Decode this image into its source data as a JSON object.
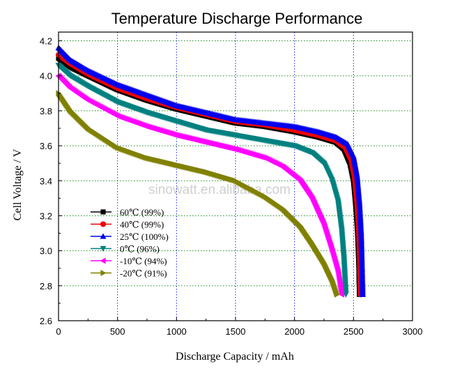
{
  "chart_data": {
    "type": "line",
    "title": "Temperature Discharge Performance",
    "xlabel": "Discharge Capacity / mAh",
    "ylabel": "Cell Voltage / V",
    "xlim": [
      0,
      3000
    ],
    "ylim": [
      2.6,
      4.25
    ],
    "xticks": [
      0,
      500,
      1000,
      1500,
      2000,
      2500,
      3000
    ],
    "yticks": [
      2.6,
      2.8,
      3.0,
      3.2,
      3.4,
      3.6,
      3.8,
      4.0,
      4.2
    ],
    "grid": true,
    "watermark": "sinowatt.en.alibaba.com",
    "legend_position": "lower-left",
    "series": [
      {
        "name": "60℃ (99%)",
        "color": "#000000",
        "marker": "square",
        "points": [
          [
            0,
            4.1
          ],
          [
            100,
            4.05
          ],
          [
            250,
            4.0
          ],
          [
            500,
            3.92
          ],
          [
            750,
            3.86
          ],
          [
            1000,
            3.81
          ],
          [
            1250,
            3.77
          ],
          [
            1500,
            3.73
          ],
          [
            1750,
            3.71
          ],
          [
            2000,
            3.68
          ],
          [
            2200,
            3.65
          ],
          [
            2350,
            3.62
          ],
          [
            2420,
            3.58
          ],
          [
            2470,
            3.5
          ],
          [
            2500,
            3.4
          ],
          [
            2520,
            3.25
          ],
          [
            2535,
            3.1
          ],
          [
            2545,
            2.92
          ],
          [
            2550,
            2.75
          ]
        ]
      },
      {
        "name": "40℃ (99%)",
        "color": "#ee0000",
        "marker": "circle",
        "points": [
          [
            0,
            4.12
          ],
          [
            100,
            4.07
          ],
          [
            250,
            4.01
          ],
          [
            500,
            3.93
          ],
          [
            750,
            3.87
          ],
          [
            1000,
            3.82
          ],
          [
            1250,
            3.78
          ],
          [
            1500,
            3.74
          ],
          [
            1750,
            3.72
          ],
          [
            2000,
            3.69
          ],
          [
            2200,
            3.66
          ],
          [
            2350,
            3.63
          ],
          [
            2430,
            3.59
          ],
          [
            2480,
            3.52
          ],
          [
            2510,
            3.42
          ],
          [
            2530,
            3.28
          ],
          [
            2545,
            3.12
          ],
          [
            2555,
            2.92
          ],
          [
            2560,
            2.75
          ]
        ]
      },
      {
        "name": "25℃ (100%)",
        "color": "#0000ee",
        "marker": "triangle-up",
        "points": [
          [
            0,
            4.16
          ],
          [
            100,
            4.09
          ],
          [
            250,
            4.03
          ],
          [
            500,
            3.95
          ],
          [
            750,
            3.89
          ],
          [
            1000,
            3.83
          ],
          [
            1250,
            3.79
          ],
          [
            1500,
            3.75
          ],
          [
            1750,
            3.73
          ],
          [
            2000,
            3.71
          ],
          [
            2200,
            3.68
          ],
          [
            2350,
            3.65
          ],
          [
            2450,
            3.61
          ],
          [
            2500,
            3.54
          ],
          [
            2530,
            3.43
          ],
          [
            2550,
            3.28
          ],
          [
            2565,
            3.1
          ],
          [
            2572,
            2.92
          ],
          [
            2578,
            2.75
          ]
        ]
      },
      {
        "name": "0℃ (96%)",
        "color": "#008080",
        "marker": "triangle-down",
        "points": [
          [
            0,
            4.06
          ],
          [
            100,
            4.0
          ],
          [
            250,
            3.94
          ],
          [
            500,
            3.85
          ],
          [
            750,
            3.79
          ],
          [
            1000,
            3.74
          ],
          [
            1250,
            3.69
          ],
          [
            1500,
            3.66
          ],
          [
            1750,
            3.63
          ],
          [
            2000,
            3.6
          ],
          [
            2150,
            3.56
          ],
          [
            2250,
            3.5
          ],
          [
            2320,
            3.4
          ],
          [
            2370,
            3.28
          ],
          [
            2400,
            3.12
          ],
          [
            2420,
            2.95
          ],
          [
            2435,
            2.75
          ]
        ]
      },
      {
        "name": "-10℃ (94%)",
        "color": "#ff00ff",
        "marker": "triangle-left",
        "points": [
          [
            0,
            4.0
          ],
          [
            100,
            3.93
          ],
          [
            250,
            3.86
          ],
          [
            500,
            3.77
          ],
          [
            750,
            3.71
          ],
          [
            1000,
            3.66
          ],
          [
            1250,
            3.62
          ],
          [
            1500,
            3.58
          ],
          [
            1750,
            3.53
          ],
          [
            1900,
            3.48
          ],
          [
            2050,
            3.4
          ],
          [
            2150,
            3.3
          ],
          [
            2250,
            3.15
          ],
          [
            2320,
            3.0
          ],
          [
            2370,
            2.88
          ],
          [
            2400,
            2.75
          ]
        ]
      },
      {
        "name": "-20℃ (91%)",
        "color": "#808000",
        "marker": "triangle-right",
        "points": [
          [
            0,
            3.9
          ],
          [
            100,
            3.8
          ],
          [
            250,
            3.7
          ],
          [
            500,
            3.59
          ],
          [
            750,
            3.53
          ],
          [
            1000,
            3.49
          ],
          [
            1250,
            3.45
          ],
          [
            1500,
            3.4
          ],
          [
            1750,
            3.31
          ],
          [
            1900,
            3.24
          ],
          [
            2050,
            3.14
          ],
          [
            2150,
            3.04
          ],
          [
            2250,
            2.93
          ],
          [
            2320,
            2.83
          ],
          [
            2360,
            2.75
          ]
        ]
      }
    ]
  }
}
